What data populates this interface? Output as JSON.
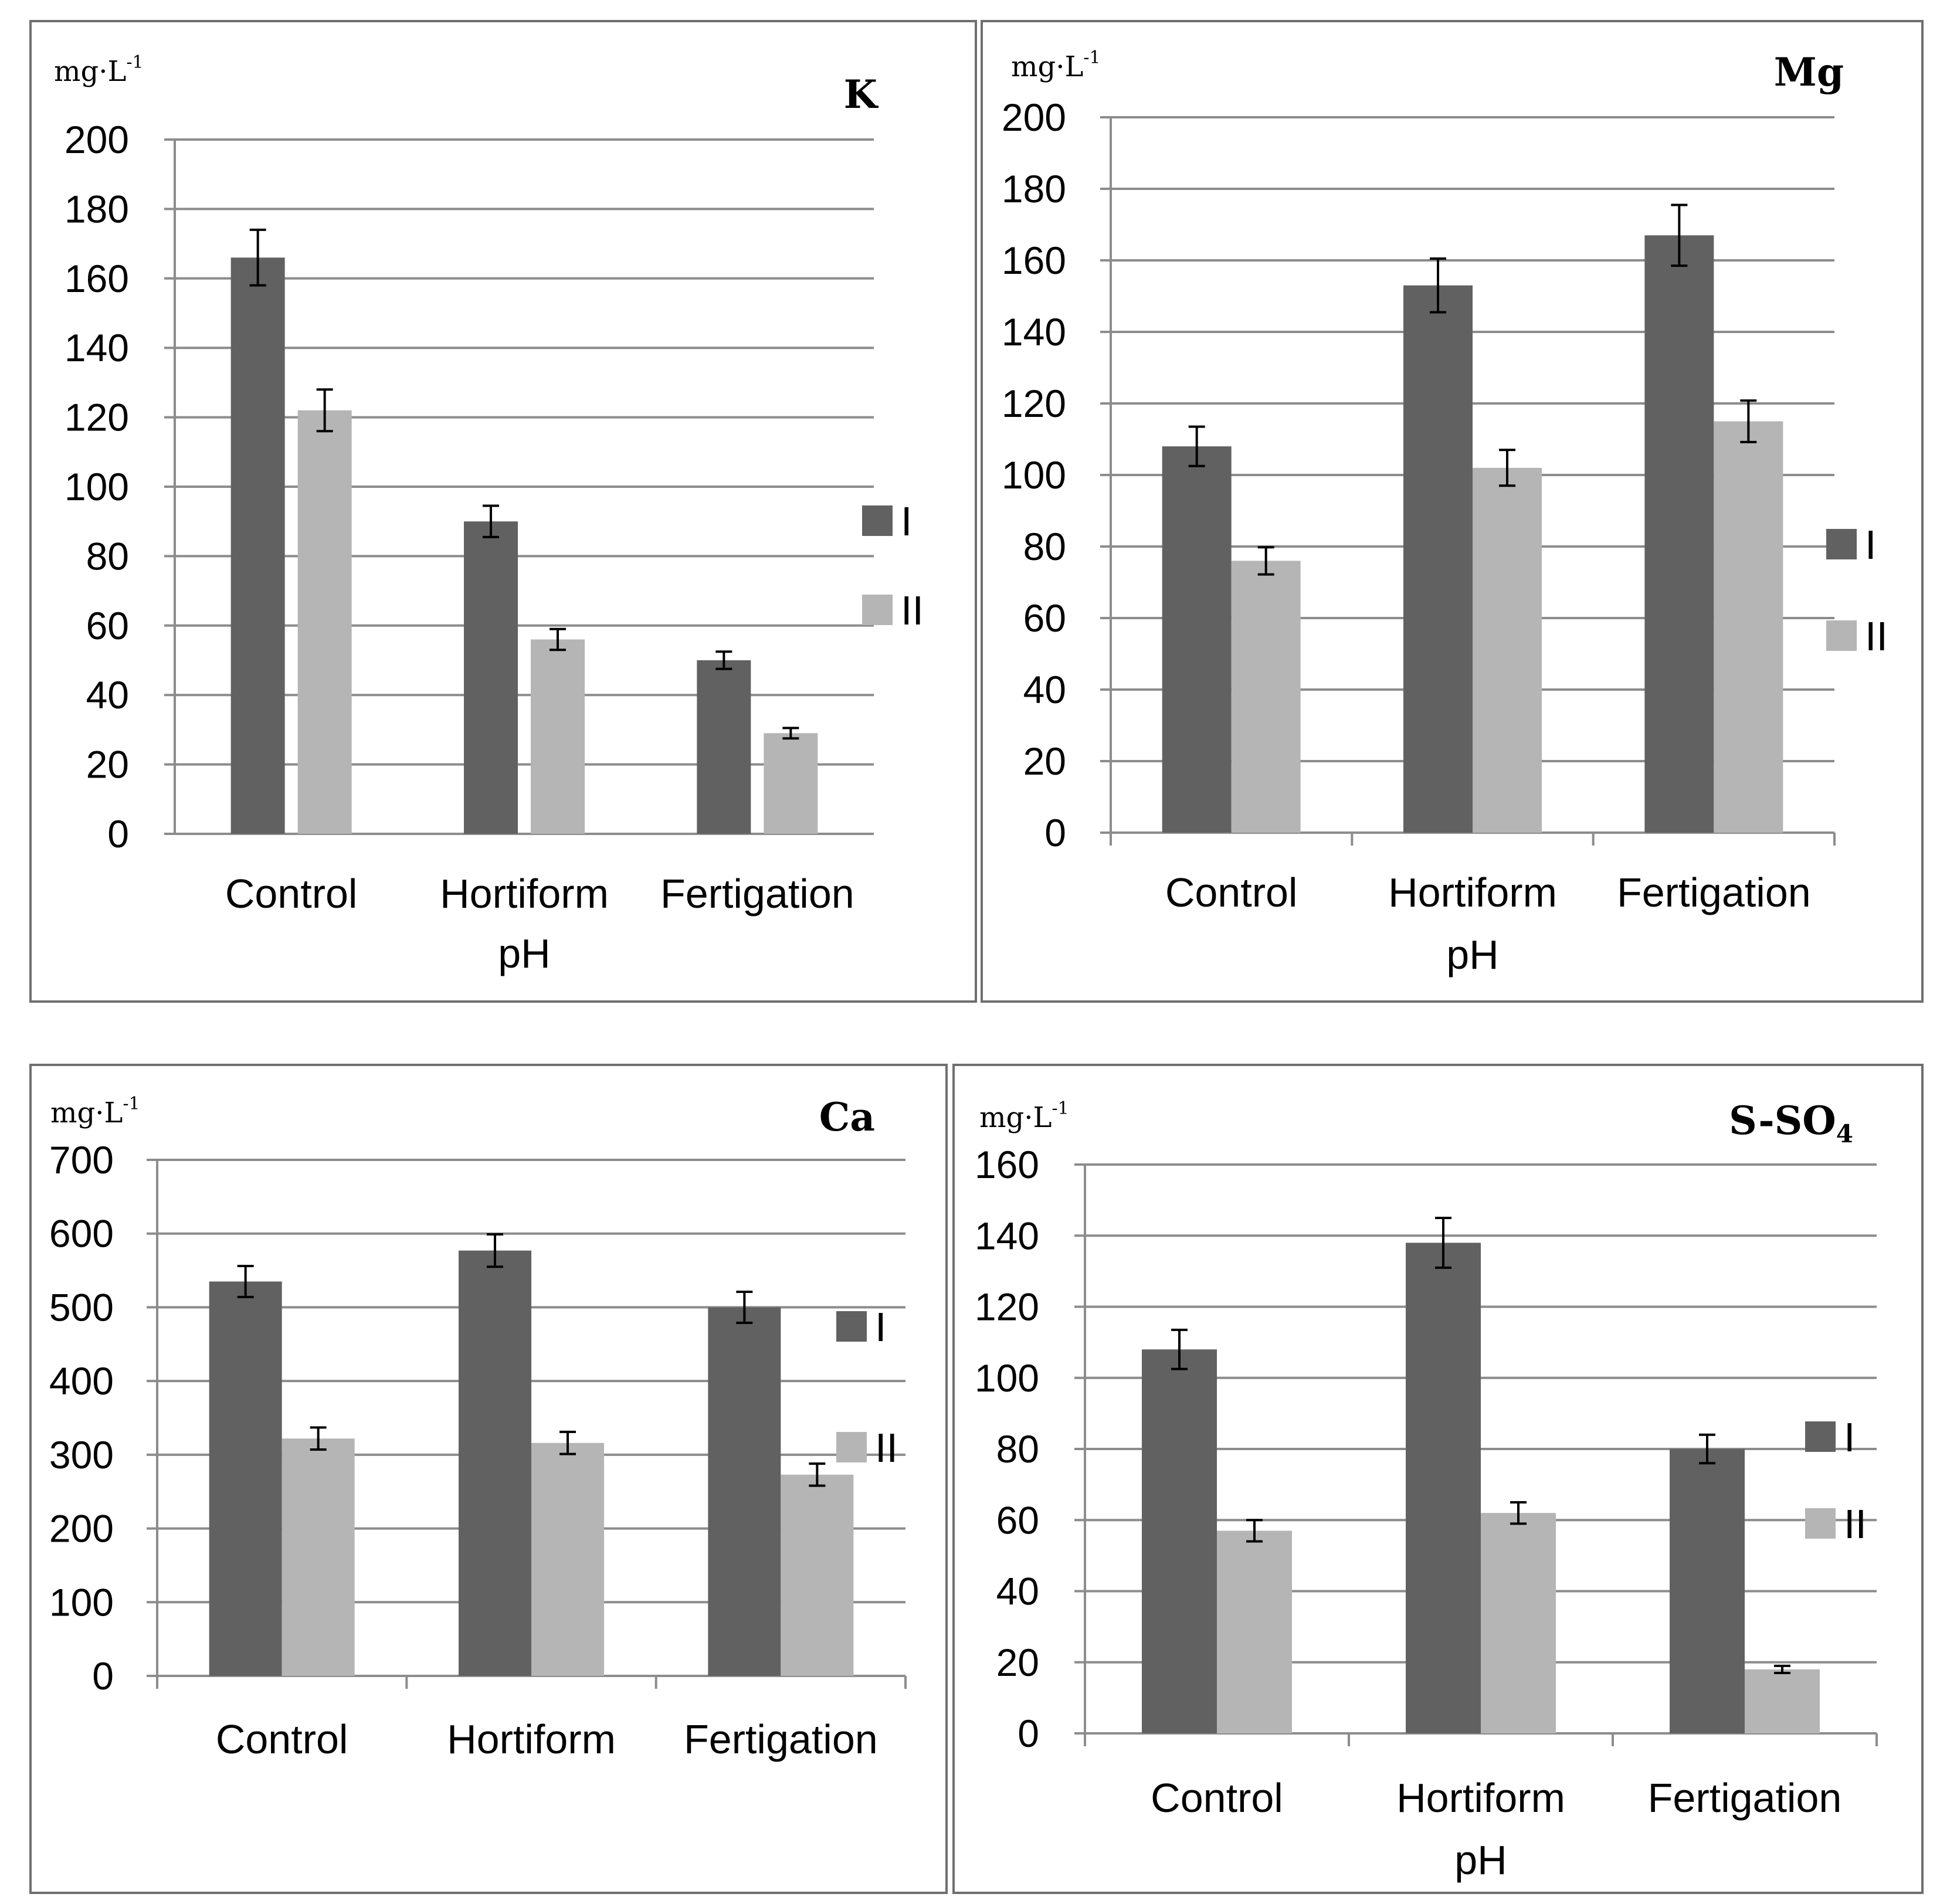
{
  "colors": {
    "series_I": "#616161",
    "series_II": "#b5b5b5"
  },
  "chart_data": [
    {
      "type": "bar",
      "title": "K",
      "unit": "mg·L",
      "unit_exp": "-1",
      "xlabel": "pH",
      "ylim": [
        0,
        200
      ],
      "yticks": [
        "0",
        "20",
        "40",
        "60",
        "80",
        "100",
        "120",
        "140",
        "160",
        "180",
        "200"
      ],
      "categories": [
        "Control",
        "Hortiform",
        "Fertigation"
      ],
      "series": [
        {
          "name": "I",
          "values": [
            166,
            90,
            50
          ],
          "errors": [
            8,
            4.5,
            2.5
          ]
        },
        {
          "name": "II",
          "values": [
            122,
            56,
            29
          ],
          "errors": [
            6,
            3,
            1.5
          ]
        }
      ]
    },
    {
      "type": "bar",
      "title": "Mg",
      "unit": "mg·L",
      "unit_exp": "-1",
      "xlabel": "pH",
      "ylim": [
        0,
        200
      ],
      "yticks": [
        "0",
        "20",
        "40",
        "60",
        "80",
        "100",
        "120",
        "140",
        "160",
        "180",
        "200"
      ],
      "categories": [
        "Control",
        "Hortiform",
        "Fertigation"
      ],
      "series": [
        {
          "name": "I",
          "values": [
            108,
            153,
            167
          ],
          "errors": [
            5.5,
            7.5,
            8.5
          ]
        },
        {
          "name": "II",
          "values": [
            76,
            102,
            115
          ],
          "errors": [
            3.8,
            5,
            5.8
          ]
        }
      ]
    },
    {
      "type": "bar",
      "title": "Ca",
      "unit": "mg·L",
      "unit_exp": "-1",
      "xlabel": "",
      "ylim": [
        0,
        700
      ],
      "yticks": [
        "0",
        "100",
        "200",
        "300",
        "400",
        "500",
        "600",
        "700"
      ],
      "categories": [
        "Control",
        "Hortiform",
        "Fertigation"
      ],
      "series": [
        {
          "name": "I",
          "values": [
            535,
            577,
            500
          ],
          "errors": [
            21,
            22,
            21
          ]
        },
        {
          "name": "II",
          "values": [
            322,
            316,
            273
          ],
          "errors": [
            15,
            15,
            15
          ]
        }
      ]
    },
    {
      "type": "bar",
      "title": "S-SO",
      "title_sub": "4",
      "unit": "mg·L",
      "unit_exp": "-1",
      "xlabel": "pH",
      "ylim": [
        0,
        160
      ],
      "yticks": [
        "0",
        "20",
        "40",
        "60",
        "80",
        "100",
        "120",
        "140",
        "160"
      ],
      "categories": [
        "Control",
        "Hortiform",
        "Fertigation"
      ],
      "series": [
        {
          "name": "I",
          "values": [
            108,
            138,
            80
          ],
          "errors": [
            5.5,
            7,
            4
          ]
        },
        {
          "name": "II",
          "values": [
            57,
            62,
            18
          ],
          "errors": [
            3,
            3,
            1
          ]
        }
      ]
    }
  ]
}
